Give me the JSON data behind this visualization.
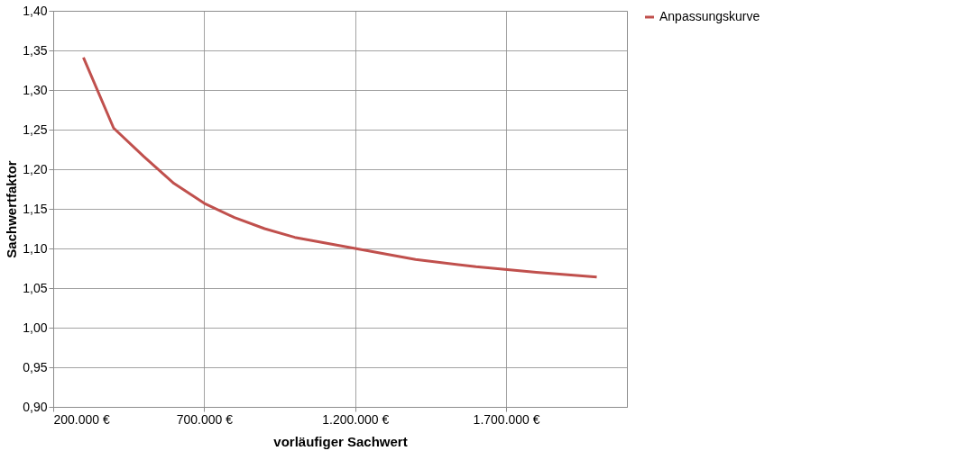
{
  "chart_data": {
    "type": "line",
    "xlabel": "vorläufiger Sachwert",
    "ylabel": "Sachwertfaktor",
    "x": [
      300000,
      400000,
      500000,
      600000,
      700000,
      800000,
      900000,
      1000000,
      1200000,
      1400000,
      1600000,
      1800000,
      2000000
    ],
    "series": [
      {
        "name": "Anpassungskurve",
        "color": "#c0504d",
        "values": [
          1.341,
          1.252,
          1.216,
          1.182,
          1.157,
          1.139,
          1.125,
          1.114,
          1.1,
          1.086,
          1.077,
          1.07,
          1.064
        ]
      }
    ],
    "xlim": [
      200000,
      2100000
    ],
    "xticks": [
      {
        "value": 200000,
        "label": "200.000 €"
      },
      {
        "value": 700000,
        "label": "700.000 €"
      },
      {
        "value": 1200000,
        "label": "1.200.000 €"
      },
      {
        "value": 1700000,
        "label": "1.700.000 €"
      }
    ],
    "ylim": [
      0.9,
      1.4
    ],
    "yticks": [
      {
        "value": 0.9,
        "label": "0,90"
      },
      {
        "value": 0.95,
        "label": "0,95"
      },
      {
        "value": 1.0,
        "label": "1,00"
      },
      {
        "value": 1.05,
        "label": "1,05"
      },
      {
        "value": 1.1,
        "label": "1,10"
      },
      {
        "value": 1.15,
        "label": "1,15"
      },
      {
        "value": 1.2,
        "label": "1,20"
      },
      {
        "value": 1.25,
        "label": "1,25"
      },
      {
        "value": 1.3,
        "label": "1,30"
      },
      {
        "value": 1.35,
        "label": "1,35"
      },
      {
        "value": 1.4,
        "label": "1,40"
      }
    ],
    "grid": true,
    "legend": "right",
    "marker": "none",
    "line_style": "solid"
  }
}
